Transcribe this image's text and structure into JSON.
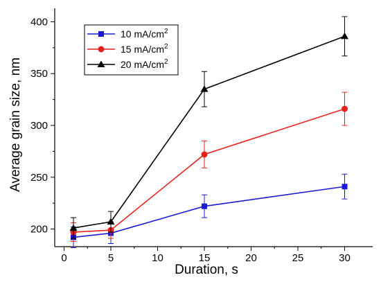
{
  "chart_data": {
    "type": "line",
    "title": "",
    "xlabel": "Duration, s",
    "ylabel": "Average grain size, nm",
    "xlim": [
      -1,
      33
    ],
    "ylim": [
      183,
      413
    ],
    "x_ticks": [
      0,
      5,
      10,
      15,
      20,
      25,
      30
    ],
    "y_ticks": [
      200,
      250,
      300,
      350,
      400
    ],
    "grid": false,
    "legend_position": "top-left",
    "x": [
      1,
      5,
      15,
      30
    ],
    "series": [
      {
        "name": "10 mA/cm",
        "superscript": "2",
        "color": "#1a1ad6",
        "marker": "square",
        "values": [
          192,
          196,
          222,
          241
        ],
        "errors": [
          10,
          10,
          11,
          12
        ]
      },
      {
        "name": "15 mA/cm",
        "superscript": "2",
        "color": "#e8221b",
        "marker": "circle",
        "values": [
          197,
          199,
          272,
          316
        ],
        "errors": [
          9,
          8,
          13,
          16
        ]
      },
      {
        "name": "20 mA/cm",
        "superscript": "2",
        "color": "#000000",
        "marker": "triangle",
        "values": [
          201,
          207,
          335,
          386
        ],
        "errors": [
          10,
          10,
          17,
          19
        ]
      }
    ]
  }
}
